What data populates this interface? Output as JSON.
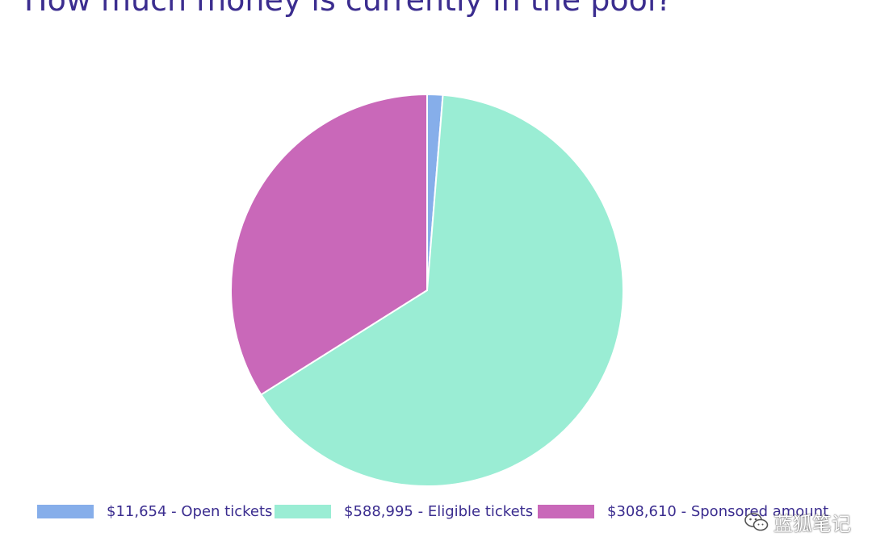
{
  "header": {
    "title": "How much money is currently in the pool?"
  },
  "chart_data": {
    "type": "pie",
    "title": "How much money is currently in the pool?",
    "categories": [
      "Open tickets",
      "Eligible tickets",
      "Sponsored amount"
    ],
    "values": [
      11654,
      588995,
      308610
    ],
    "colors": [
      "#86aeea",
      "#9aedd4",
      "#c968b9"
    ],
    "start_angle_deg": 0,
    "direction": "clockwise",
    "legend_placement": "bottom",
    "legend": [
      {
        "label": "$11,654 - Open tickets",
        "color": "#86aeea"
      },
      {
        "label": "$588,995 - Eligible tickets",
        "color": "#9aedd4"
      },
      {
        "label": "$308,610 - Sponsored amount",
        "color": "#c968b9"
      }
    ]
  },
  "watermark": {
    "text": "蓝狐笔记",
    "icon": "wechat-icon"
  }
}
